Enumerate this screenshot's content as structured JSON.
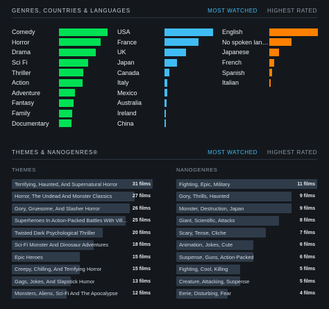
{
  "section1": {
    "title": "GENRES, COUNTRIES & LANGUAGES",
    "tab_most": "MOST WATCHED",
    "tab_highest": "HIGHEST RATED"
  },
  "colors": {
    "genres": "#00e054",
    "countries": "#40bcf4",
    "languages": "#ff8000"
  },
  "genres": [
    {
      "label": "Comedy",
      "value": 1.0
    },
    {
      "label": "Horror",
      "value": 0.86
    },
    {
      "label": "Drama",
      "value": 0.76
    },
    {
      "label": "Sci Fi",
      "value": 0.6
    },
    {
      "label": "Thriller",
      "value": 0.5
    },
    {
      "label": "Action",
      "value": 0.49
    },
    {
      "label": "Adventure",
      "value": 0.33
    },
    {
      "label": "Fantasy",
      "value": 0.3
    },
    {
      "label": "Family",
      "value": 0.27
    },
    {
      "label": "Documentary",
      "value": 0.25
    }
  ],
  "countries": [
    {
      "label": "USA",
      "value": 1.0
    },
    {
      "label": "France",
      "value": 0.7
    },
    {
      "label": "UK",
      "value": 0.44
    },
    {
      "label": "Japan",
      "value": 0.26
    },
    {
      "label": "Canada",
      "value": 0.1
    },
    {
      "label": "Italy",
      "value": 0.06
    },
    {
      "label": "Mexico",
      "value": 0.05
    },
    {
      "label": "Australia",
      "value": 0.04
    },
    {
      "label": "Ireland",
      "value": 0.03
    },
    {
      "label": "China",
      "value": 0.03
    }
  ],
  "languages": [
    {
      "label": "English",
      "value": 1.0
    },
    {
      "label": "No spoken language",
      "value": 0.46
    },
    {
      "label": "Japanese",
      "value": 0.2
    },
    {
      "label": "French",
      "value": 0.1
    },
    {
      "label": "Spanish",
      "value": 0.06
    },
    {
      "label": "Italian",
      "value": 0.03
    }
  ],
  "section2": {
    "title": "THEMES & NANOGENRES®",
    "tab_most": "MOST WATCHED",
    "tab_highest": "HIGHEST RATED"
  },
  "themes": {
    "title": "THEMES",
    "items": [
      {
        "name": "Terrifying, Haunted, And Supernatural Horror",
        "count": "31 films",
        "value": 31
      },
      {
        "name": "Horror, The Undead And Monster Classics",
        "count": "27 films",
        "value": 27
      },
      {
        "name": "Gory, Gruesome, And Slasher Horror",
        "count": "26 films",
        "value": 26
      },
      {
        "name": "Superheroes In Action-Packed Battles With Villains",
        "count": "25 films",
        "value": 25
      },
      {
        "name": "Twisted Dark Psychological Thriller",
        "count": "20 films",
        "value": 20
      },
      {
        "name": "Sci-Fi Monster And Dinosaur Adventures",
        "count": "18 films",
        "value": 18
      },
      {
        "name": "Epic Heroes",
        "count": "15 films",
        "value": 15
      },
      {
        "name": "Creepy, Chilling, And Terrifying Horror",
        "count": "15 films",
        "value": 15
      },
      {
        "name": "Gags, Jokes, And Slapstick Humor",
        "count": "13 films",
        "value": 13
      },
      {
        "name": "Monsters, Aliens, Sci-Fi And The Apocalypse",
        "count": "12 films",
        "value": 12
      }
    ]
  },
  "nanogenres": {
    "title": "NANOGENRES",
    "items": [
      {
        "name": "Fighting, Epic, Military",
        "count": "11 films",
        "value": 11
      },
      {
        "name": "Gory, Thrills, Haunted",
        "count": "9 films",
        "value": 9
      },
      {
        "name": "Monster, Destruction, Japan",
        "count": "9 films",
        "value": 9
      },
      {
        "name": "Giant, Scientific, Attacks",
        "count": "8 films",
        "value": 8
      },
      {
        "name": "Scary, Tense, Cliche",
        "count": "7 films",
        "value": 7
      },
      {
        "name": "Animation, Jokes, Cute",
        "count": "6 films",
        "value": 6
      },
      {
        "name": "Suspense, Guns, Action-Packed",
        "count": "6 films",
        "value": 6
      },
      {
        "name": "Fighting, Cool, Killing",
        "count": "5 films",
        "value": 5
      },
      {
        "name": "Creature, Attacking, Suspense",
        "count": "5 films",
        "value": 5
      },
      {
        "name": "Eerie, Disturbing, Fear",
        "count": "4 films",
        "value": 4
      }
    ]
  }
}
